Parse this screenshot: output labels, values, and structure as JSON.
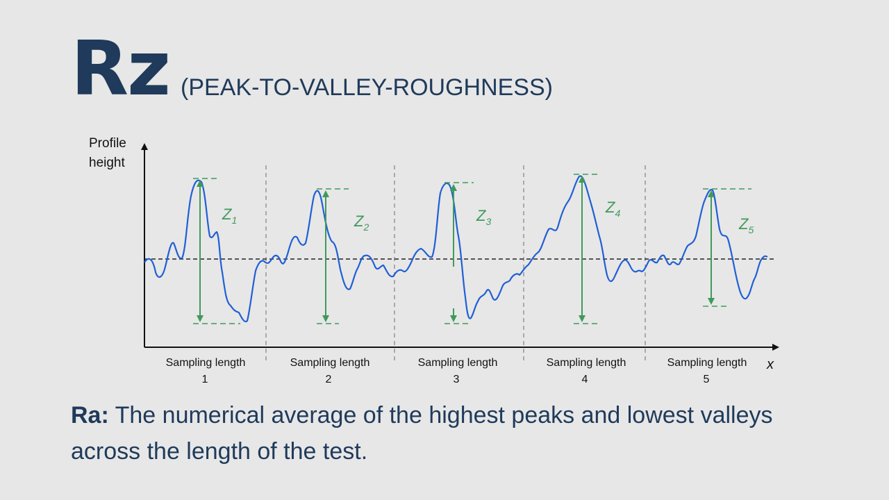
{
  "header": {
    "title": "Rz",
    "subtitle": "(PEAK-TO-VALLEY-ROUGHNESS)"
  },
  "diagram": {
    "y_axis_label_line1": "Profile",
    "y_axis_label_line2": "height",
    "x_axis_label": "x",
    "segments": [
      {
        "label": "Sampling length",
        "number": "1",
        "z_label": "Z",
        "z_sub": "1"
      },
      {
        "label": "Sampling length",
        "number": "2",
        "z_label": "Z",
        "z_sub": "2"
      },
      {
        "label": "Sampling length",
        "number": "3",
        "z_label": "Z",
        "z_sub": "3"
      },
      {
        "label": "Sampling length",
        "number": "4",
        "z_label": "Z",
        "z_sub": "4"
      },
      {
        "label": "Sampling length",
        "number": "5",
        "z_label": "Z",
        "z_sub": "5"
      }
    ],
    "colors": {
      "profile": "#1f5fd6",
      "measure": "#3f9a5a",
      "axis": "#111111",
      "divider": "#888888"
    }
  },
  "caption": {
    "bold": "Ra:",
    "text": " The numerical average of the highest peaks and lowest valleys across the length of the test."
  }
}
